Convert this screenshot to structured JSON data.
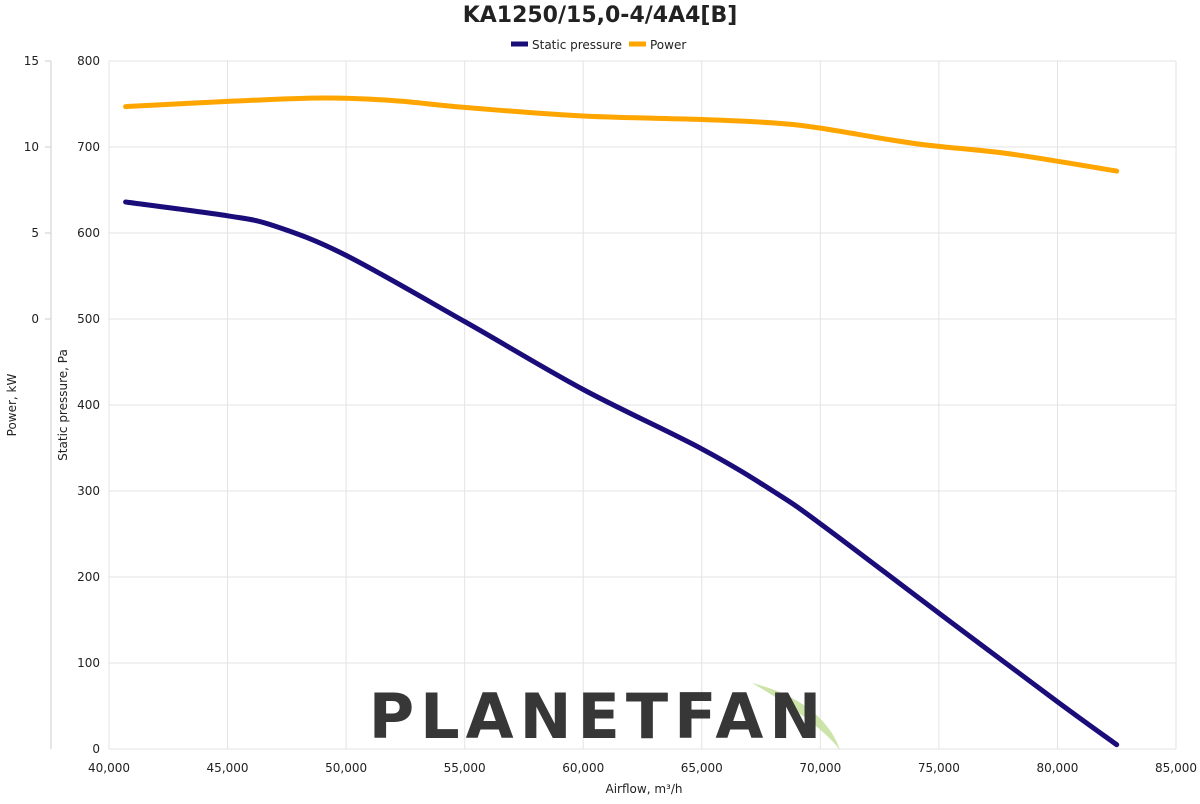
{
  "chart_data": {
    "type": "line",
    "title": "KA1250/15,0-4/4A4[B]",
    "xlabel": "Airflow, m³/h",
    "ylabel": "Static pressure, Pa",
    "y2label": "Power, kW",
    "xlim": [
      40000,
      85000
    ],
    "ylim": [
      0,
      800
    ],
    "y2lim": [
      -25,
      15
    ],
    "x_ticks": [
      "40,000",
      "45,000",
      "50,000",
      "55,000",
      "60,000",
      "65,000",
      "70,000",
      "75,000",
      "80,000",
      "85,000"
    ],
    "y_ticks": [
      "0",
      "100",
      "200",
      "300",
      "400",
      "500",
      "600",
      "700",
      "800"
    ],
    "y2_ticks": [
      "0",
      "5",
      "10",
      "15"
    ],
    "grid": true,
    "legend_position": "top-center",
    "series": [
      {
        "name": "Static pressure",
        "axis": "left",
        "color": "#1a0d7a",
        "x": [
          40700,
          45000,
          47000,
          50000,
          55000,
          60000,
          65000,
          68000,
          70000,
          75000,
          80000,
          82500
        ],
        "y": [
          636,
          620,
          608,
          574,
          497,
          418,
          349,
          300,
          262,
          158,
          55,
          5
        ]
      },
      {
        "name": "Power",
        "axis": "right",
        "color": "#ffa500",
        "x": [
          40700,
          45000,
          49000,
          52000,
          55000,
          60000,
          65000,
          68000,
          70000,
          74000,
          78000,
          82500
        ],
        "y": [
          12.35,
          12.65,
          12.85,
          12.7,
          12.3,
          11.8,
          11.6,
          11.4,
          11.1,
          10.2,
          9.6,
          8.6
        ]
      }
    ]
  },
  "watermark": {
    "text": "PLANETFAN",
    "color": "#8e9cc8",
    "accent_color": "#c7e0a0"
  }
}
